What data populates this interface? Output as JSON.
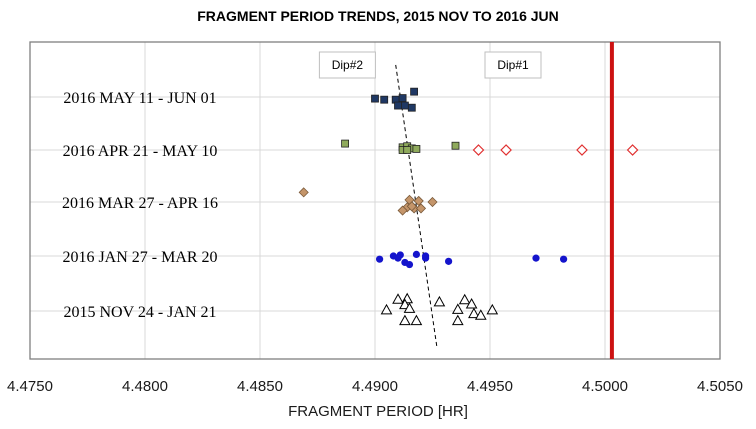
{
  "chart_data": {
    "type": "scatter",
    "title": "FRAGMENT PERIOD TRENDS, 2015 NOV TO 2016 JUN",
    "xlabel": "FRAGMENT PERIOD [HR]",
    "ylabel": "",
    "xlim": [
      4.475,
      4.505
    ],
    "x_ticks": [
      "4.4750",
      "4.4800",
      "4.4850",
      "4.4900",
      "4.4950",
      "4.5000",
      "4.5050"
    ],
    "x_tick_values": [
      4.475,
      4.48,
      4.485,
      4.49,
      4.495,
      4.5,
      4.505
    ],
    "grid": true,
    "legend": "none",
    "categories": [
      "2016 MAY 11 - JUN 01",
      "2016 APR 21 - MAY 10",
      "2016 MAR 27 - APR 16",
      "2016 JAN 27 - MAR 20",
      "2015 NOV 24 - JAN 21"
    ],
    "series": [
      {
        "category": "2016 MAY 11 - JUN 01",
        "marker": "square",
        "color": "#1f3864",
        "points": [
          {
            "x": 4.49,
            "y": 0.03
          },
          {
            "x": 4.4904,
            "y": 0.05
          },
          {
            "x": 4.4909,
            "y": 0.05
          },
          {
            "x": 4.4912,
            "y": 0.02
          },
          {
            "x": 4.4917,
            "y": -0.1
          },
          {
            "x": 4.491,
            "y": 0.16
          },
          {
            "x": 4.4913,
            "y": 0.16
          },
          {
            "x": 4.4916,
            "y": 0.2
          }
        ]
      },
      {
        "category": "2016 APR 21 - MAY 10",
        "marker": "square",
        "color": "#8faa5c",
        "points": [
          {
            "x": 4.4887,
            "y": -0.12
          },
          {
            "x": 4.4912,
            "y": -0.05
          },
          {
            "x": 4.4914,
            "y": -0.07
          },
          {
            "x": 4.4916,
            "y": -0.03
          },
          {
            "x": 4.4918,
            "y": -0.02
          },
          {
            "x": 4.4912,
            "y": 0.0
          },
          {
            "x": 4.4914,
            "y": 0.0
          },
          {
            "x": 4.4935,
            "y": -0.08
          }
        ]
      },
      {
        "category": "2016 APR 21 - MAY 10",
        "marker": "diamond-open",
        "color": "#e03030",
        "points": [
          {
            "x": 4.4945,
            "y": 0.0
          },
          {
            "x": 4.4957,
            "y": 0.0
          },
          {
            "x": 4.499,
            "y": 0.0
          },
          {
            "x": 4.5012,
            "y": 0.0
          }
        ]
      },
      {
        "category": "2016 MAR 27 - APR 16",
        "marker": "diamond",
        "color": "#c4956a",
        "points": [
          {
            "x": 4.4869,
            "y": -0.18
          },
          {
            "x": 4.4915,
            "y": -0.04
          },
          {
            "x": 4.4919,
            "y": -0.02
          },
          {
            "x": 4.4925,
            "y": 0.0
          },
          {
            "x": 4.4914,
            "y": 0.1
          },
          {
            "x": 4.4917,
            "y": 0.12
          },
          {
            "x": 4.4912,
            "y": 0.16
          },
          {
            "x": 4.4916,
            "y": 0.08
          },
          {
            "x": 4.492,
            "y": 0.12
          }
        ]
      },
      {
        "category": "2016 JAN 27 - MAR 20",
        "marker": "circle",
        "color": "#1414cc",
        "points": [
          {
            "x": 4.4902,
            "y": 0.06
          },
          {
            "x": 4.4908,
            "y": 0.0
          },
          {
            "x": 4.4911,
            "y": -0.02
          },
          {
            "x": 4.491,
            "y": 0.04
          },
          {
            "x": 4.4913,
            "y": 0.12
          },
          {
            "x": 4.4915,
            "y": 0.16
          },
          {
            "x": 4.4918,
            "y": -0.03
          },
          {
            "x": 4.4922,
            "y": 0.0
          },
          {
            "x": 4.4922,
            "y": 0.04
          },
          {
            "x": 4.4932,
            "y": 0.1
          },
          {
            "x": 4.497,
            "y": 0.04
          },
          {
            "x": 4.4982,
            "y": 0.06
          }
        ]
      },
      {
        "category": "2015 NOV 24 - JAN 21",
        "marker": "triangle-open",
        "color": "#000000",
        "points": [
          {
            "x": 4.4905,
            "y": -0.02
          },
          {
            "x": 4.491,
            "y": -0.22
          },
          {
            "x": 4.4914,
            "y": -0.23
          },
          {
            "x": 4.4913,
            "y": -0.12
          },
          {
            "x": 4.4915,
            "y": -0.05
          },
          {
            "x": 4.4913,
            "y": 0.18
          },
          {
            "x": 4.4918,
            "y": 0.18
          },
          {
            "x": 4.4928,
            "y": -0.17
          },
          {
            "x": 4.4936,
            "y": -0.03
          },
          {
            "x": 4.4936,
            "y": 0.18
          },
          {
            "x": 4.4939,
            "y": -0.21
          },
          {
            "x": 4.4942,
            "y": -0.13
          },
          {
            "x": 4.4943,
            "y": 0.05
          },
          {
            "x": 4.4946,
            "y": 0.08
          },
          {
            "x": 4.4951,
            "y": -0.02
          }
        ]
      }
    ],
    "reference_line": {
      "x": 4.5003,
      "color": "#cc1111"
    },
    "trend_line": {
      "x_start": 4.4909,
      "y_start_category_offset": -0.6,
      "x_end": 4.4927,
      "y_end_category_offset": 0.7
    },
    "annotations": [
      {
        "text": "Dip#2",
        "x": 4.4888,
        "y_position": "top"
      },
      {
        "text": "Dip#1",
        "x": 4.496,
        "y_position": "top"
      }
    ]
  }
}
